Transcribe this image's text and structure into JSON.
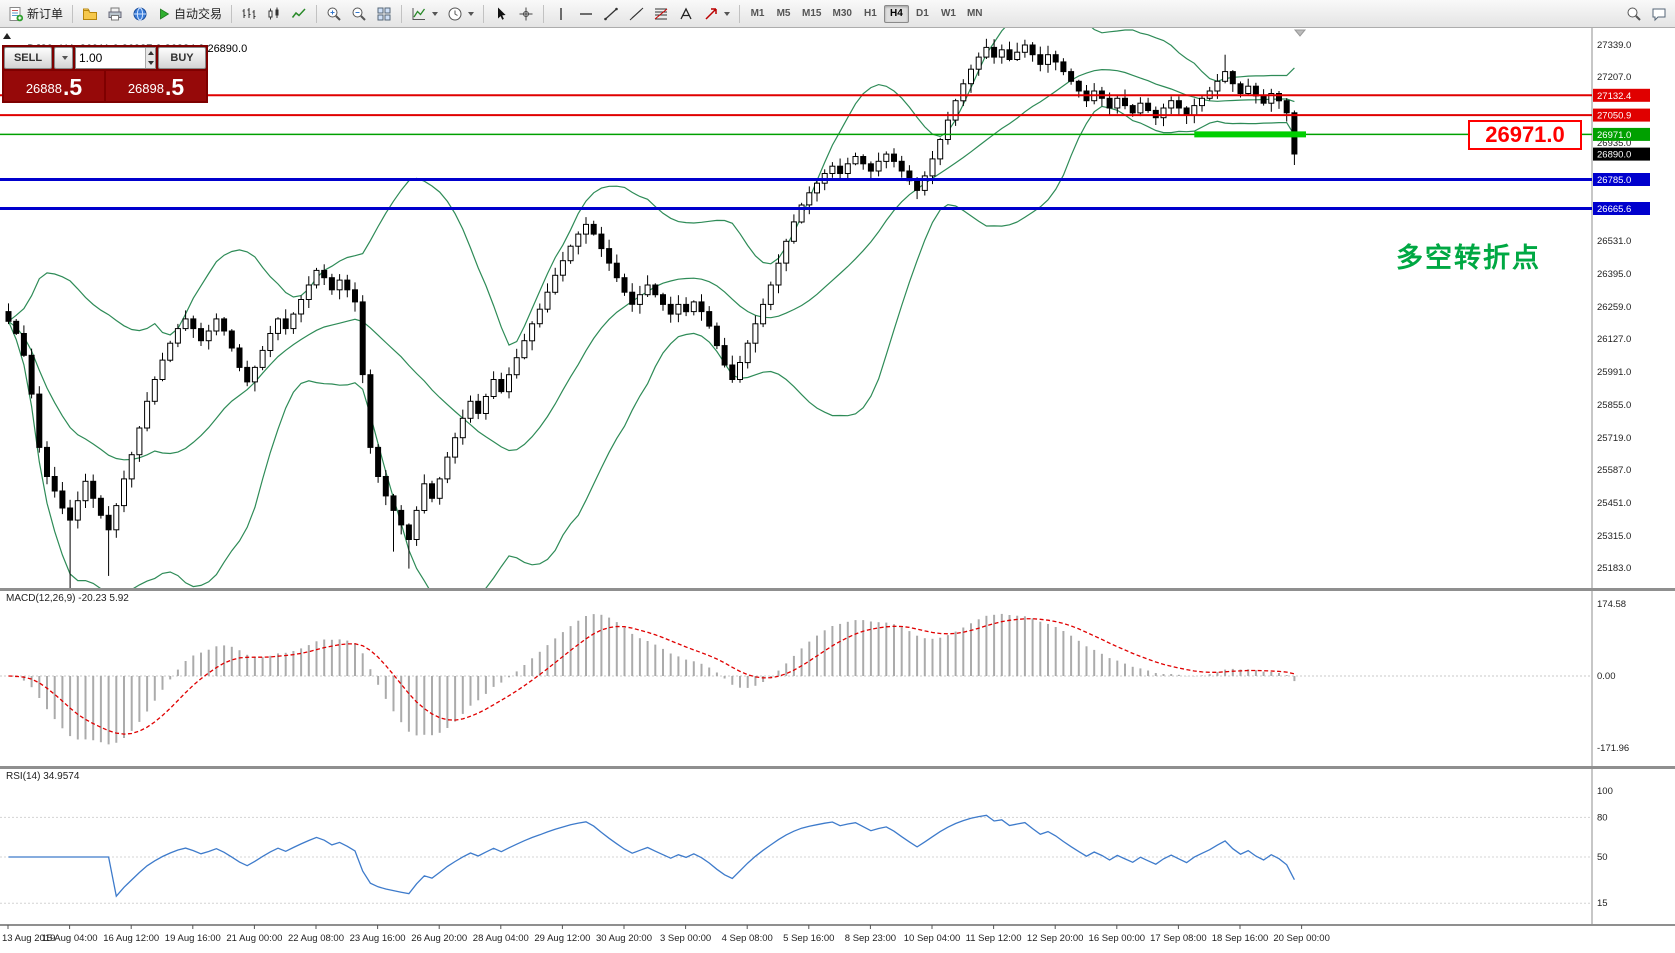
{
  "toolbar": {
    "new_order_label": "新订单",
    "autotrading_label": "自动交易",
    "timeframes": [
      "M1",
      "M5",
      "M15",
      "M30",
      "H1",
      "H4",
      "D1",
      "W1",
      "MN"
    ],
    "active_timeframe": "H4"
  },
  "trade_panel": {
    "sell_label": "SELL",
    "buy_label": "BUY",
    "volume": "1.00",
    "sell_price_main": "26888",
    "sell_price_pip": ".5",
    "buy_price_main": "26898",
    "buy_price_pip": ".5",
    "panel_color": "#7E0000",
    "price_box_color": "#960909"
  },
  "chart_data": {
    "type": "candlestick",
    "title": "DJ30-,H4  26911.0 26937.0 26884.0 26890.0",
    "symbol": "DJ30-",
    "period": "H4",
    "annotation": {
      "text": "多空转折点",
      "color": "#00A843"
    },
    "big_label": {
      "text": "26971.0",
      "color": "#FF0000"
    },
    "price_range": {
      "min": 25100,
      "max": 27410
    },
    "price_ticks": [
      {
        "label": "27339.0",
        "value": 27339
      },
      {
        "label": "27207.0",
        "value": 27207
      },
      {
        "label": "26935.0",
        "value": 26935
      },
      {
        "label": "26531.0",
        "value": 26531
      },
      {
        "label": "26395.0",
        "value": 26395
      },
      {
        "label": "26259.0",
        "value": 26259
      },
      {
        "label": "26127.0",
        "value": 26127
      },
      {
        "label": "25991.0",
        "value": 25991
      },
      {
        "label": "25855.0",
        "value": 25855
      },
      {
        "label": "25719.0",
        "value": 25719
      },
      {
        "label": "25587.0",
        "value": 25587
      },
      {
        "label": "25451.0",
        "value": 25451
      },
      {
        "label": "25315.0",
        "value": 25315
      },
      {
        "label": "25183.0",
        "value": 25183
      }
    ],
    "hlines": [
      {
        "price": 27132.4,
        "label": "27132.4",
        "color": "#E00000",
        "width": 2
      },
      {
        "price": 27050.9,
        "label": "27050.9",
        "color": "#E00000",
        "width": 2
      },
      {
        "price": 26971.0,
        "label": "26971.0",
        "color": "#00A000",
        "width": 1.5
      },
      {
        "price": 26785.0,
        "label": "26785.0",
        "color": "#0000CD",
        "width": 3
      },
      {
        "price": 26665.6,
        "label": "26665.6",
        "color": "#0000CD",
        "width": 3
      }
    ],
    "current_price": {
      "label": "26890.0",
      "value": 26890,
      "badge_color": "#000000"
    },
    "thick_segment": {
      "price": 26971.0,
      "from_index": 154,
      "to_index": 168.5,
      "color": "#00CF00",
      "width": 6
    },
    "time_labels": [
      "13 Aug 2019",
      "15 Aug 04:00",
      "16 Aug 12:00",
      "19 Aug 16:00",
      "21 Aug 00:00",
      "22 Aug 08:00",
      "23 Aug 16:00",
      "26 Aug 20:00",
      "28 Aug 04:00",
      "29 Aug 12:00",
      "30 Aug 20:00",
      "3 Sep 00:00",
      "4 Sep 08:00",
      "5 Sep 16:00",
      "8 Sep 23:00",
      "10 Sep 04:00",
      "11 Sep 12:00",
      "12 Sep 20:00",
      "16 Sep 00:00",
      "17 Sep 08:00",
      "18 Sep 16:00",
      "20 Sep 00:00"
    ],
    "closes": [
      26200,
      26150,
      26060,
      25900,
      25680,
      25560,
      25500,
      25430,
      25380,
      25460,
      25540,
      25470,
      25400,
      25340,
      25440,
      25550,
      25650,
      25760,
      25870,
      25960,
      26040,
      26110,
      26170,
      26210,
      26170,
      26120,
      26160,
      26210,
      26160,
      26090,
      26010,
      25950,
      26010,
      26080,
      26150,
      26210,
      26170,
      26230,
      26290,
      26350,
      26410,
      26380,
      26330,
      26370,
      26330,
      26280,
      25980,
      25680,
      25560,
      25480,
      25420,
      25360,
      25300,
      25420,
      25530,
      25470,
      25550,
      25640,
      25720,
      25800,
      25870,
      25820,
      25890,
      25960,
      25910,
      25980,
      26050,
      26120,
      26190,
      26250,
      26320,
      26390,
      26450,
      26510,
      26560,
      26600,
      26560,
      26500,
      26440,
      26380,
      26320,
      26270,
      26310,
      26350,
      26310,
      26270,
      26230,
      26270,
      26240,
      26280,
      26240,
      26180,
      26100,
      26020,
      25960,
      26030,
      26110,
      26190,
      26270,
      26350,
      26440,
      26530,
      26610,
      26680,
      26730,
      26770,
      26810,
      26840,
      26810,
      26850,
      26880,
      26850,
      26820,
      26860,
      26890,
      26860,
      26820,
      26780,
      26740,
      26800,
      26870,
      26950,
      27030,
      27110,
      27180,
      27240,
      27290,
      27330,
      27290,
      27320,
      27280,
      27310,
      27340,
      27300,
      27260,
      27300,
      27270,
      27230,
      27190,
      27150,
      27110,
      27150,
      27120,
      27080,
      27120,
      27090,
      27060,
      27100,
      27070,
      27040,
      27080,
      27110,
      27080,
      27050,
      27090,
      27120,
      27150,
      27190,
      27230,
      27180,
      27140,
      27170,
      27130,
      27100,
      27140,
      27110,
      27060,
      26890
    ],
    "wick_overrides": {
      "8": {
        "low": 25100
      },
      "13": {
        "low": 25150
      },
      "50": {
        "low": 25250
      },
      "52": {
        "low": 25180
      },
      "158": {
        "high": 27300
      },
      "167": {
        "low": 26845
      }
    },
    "candle_up_fill": "#FFFFFF",
    "candle_down_fill": "#000000",
    "bollinger": {
      "period": 20,
      "deviation": 2,
      "color": "#2E8B57"
    },
    "macd": {
      "title": "MACD(12,26,9) -20.23 5.92",
      "ticks": [
        "174.58",
        "0.00",
        "-171.96"
      ],
      "histogram_color": "#ABABAB",
      "signal_color": "#E00000"
    },
    "rsi": {
      "title": "RSI(14) 34.9574",
      "ticks": [
        {
          "label": "100",
          "value": 100
        },
        {
          "label": "80",
          "value": 80
        },
        {
          "label": "50",
          "value": 50
        },
        {
          "label": "15",
          "value": 15
        }
      ],
      "color": "#3E7BCB"
    }
  }
}
